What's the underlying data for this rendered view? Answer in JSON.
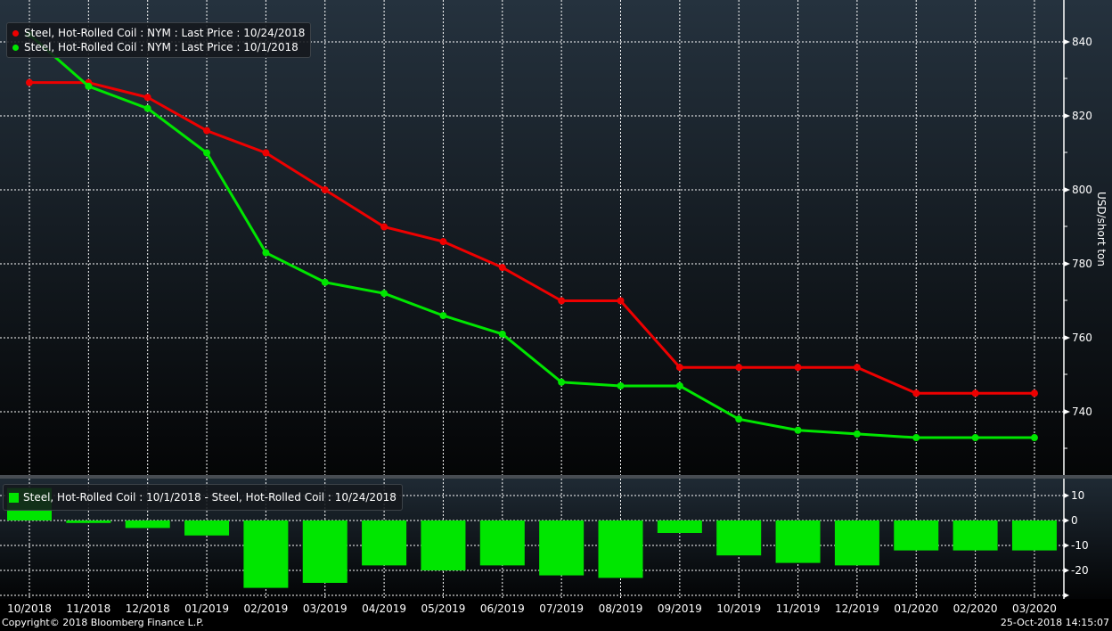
{
  "colors": {
    "red_series": "#ee0000",
    "green_series": "#00e600",
    "bar": "#00e600",
    "grid": "#ffffff"
  },
  "top_legend": [
    {
      "label": "Steel, Hot-Rolled Coil : NYM : Last Price : 10/24/2018",
      "color": "#ee0000"
    },
    {
      "label": "Steel, Hot-Rolled Coil : NYM : Last Price : 10/1/2018",
      "color": "#00e600"
    }
  ],
  "bottom_legend": {
    "label": "Steel, Hot-Rolled Coil : 10/1/2018 - Steel, Hot-Rolled Coil : 10/24/2018",
    "color": "#00e600"
  },
  "footer": {
    "copyright": "Copyright© 2018 Bloomberg Finance L.P.",
    "timestamp": "25-Oct-2018 14:15:07"
  },
  "chart_data": [
    {
      "type": "line",
      "title": "",
      "ylabel": "USD/short ton",
      "xlabel": "",
      "ylim": [
        724,
        851
      ],
      "yticks": [
        740,
        760,
        780,
        800,
        820,
        840
      ],
      "grid": true,
      "legend_position": "top-left",
      "categories": [
        "10/2018",
        "11/2018",
        "12/2018",
        "01/2019",
        "02/2019",
        "03/2019",
        "04/2019",
        "05/2019",
        "06/2019",
        "07/2019",
        "08/2019",
        "09/2019",
        "10/2019",
        "11/2019",
        "12/2019",
        "01/2020",
        "02/2020",
        "03/2020"
      ],
      "series": [
        {
          "name": "Steel, Hot-Rolled Coil : NYM : Last Price : 10/24/2018",
          "color": "#ee0000",
          "values": [
            829,
            829,
            825,
            816,
            810,
            800,
            790,
            786,
            779,
            770,
            770,
            752,
            752,
            752,
            752,
            745,
            745,
            745
          ]
        },
        {
          "name": "Steel, Hot-Rolled Coil : NYM : Last Price : 10/1/2018",
          "color": "#00e600",
          "values": [
            842,
            828,
            822,
            810,
            783,
            775,
            772,
            766,
            761,
            748,
            747,
            747,
            738,
            735,
            734,
            733,
            733,
            733
          ]
        }
      ]
    },
    {
      "type": "bar",
      "title": "",
      "ylabel": "",
      "ylim": [
        -30,
        17
      ],
      "yticks": [
        -20,
        -10,
        0,
        10
      ],
      "grid": true,
      "legend_position": "top-left",
      "categories": [
        "10/2018",
        "11/2018",
        "12/2018",
        "01/2019",
        "02/2019",
        "03/2019",
        "04/2019",
        "05/2019",
        "06/2019",
        "07/2019",
        "08/2019",
        "09/2019",
        "10/2019",
        "11/2019",
        "12/2019",
        "01/2020",
        "02/2020",
        "03/2020"
      ],
      "series": [
        {
          "name": "Steel, Hot-Rolled Coil : 10/1/2018 - Steel, Hot-Rolled Coil : 10/24/2018",
          "color": "#00e600",
          "values": [
            13,
            -1,
            -3,
            -6,
            -27,
            -25,
            -18,
            -20,
            -18,
            -22,
            -23,
            -5,
            -14,
            -17,
            -18,
            -12,
            -12,
            -12
          ]
        }
      ]
    }
  ]
}
